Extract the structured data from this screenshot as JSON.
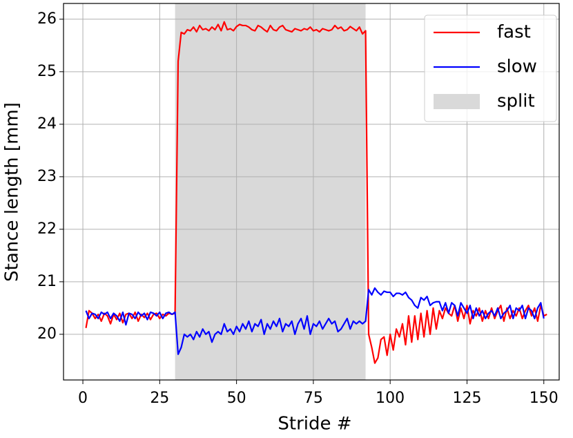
{
  "chart_data": {
    "type": "line",
    "xlabel": "Stride #",
    "ylabel": "Stance length [mm]",
    "x": [
      1,
      2,
      3,
      4,
      5,
      6,
      7,
      8,
      9,
      10,
      11,
      12,
      13,
      14,
      15,
      16,
      17,
      18,
      19,
      20,
      21,
      22,
      23,
      24,
      25,
      26,
      27,
      28,
      29,
      30,
      31,
      32,
      33,
      34,
      35,
      36,
      37,
      38,
      39,
      40,
      41,
      42,
      43,
      44,
      45,
      46,
      47,
      48,
      49,
      50,
      51,
      52,
      53,
      54,
      55,
      56,
      57,
      58,
      59,
      60,
      61,
      62,
      63,
      64,
      65,
      66,
      67,
      68,
      69,
      70,
      71,
      72,
      73,
      74,
      75,
      76,
      77,
      78,
      79,
      80,
      81,
      82,
      83,
      84,
      85,
      86,
      87,
      88,
      89,
      90,
      91,
      92,
      93,
      94,
      95,
      96,
      97,
      98,
      99,
      100,
      101,
      102,
      103,
      104,
      105,
      106,
      107,
      108,
      109,
      110,
      111,
      112,
      113,
      114,
      115,
      116,
      117,
      118,
      119,
      120,
      121,
      122,
      123,
      124,
      125,
      126,
      127,
      128,
      129,
      130,
      131,
      132,
      133,
      134,
      135,
      136,
      137,
      138,
      139,
      140,
      141,
      142,
      143,
      144,
      145,
      146,
      147,
      148,
      149,
      150,
      151
    ],
    "series": [
      {
        "name": "fast",
        "color": "#ff0000",
        "values": [
          20.12,
          20.45,
          20.4,
          20.3,
          20.38,
          20.25,
          20.4,
          20.35,
          20.2,
          20.38,
          20.28,
          20.4,
          20.22,
          20.38,
          20.4,
          20.3,
          20.42,
          20.25,
          20.38,
          20.32,
          20.4,
          20.28,
          20.38,
          20.4,
          20.3,
          20.38,
          20.35,
          20.4,
          20.38,
          20.4,
          25.2,
          25.75,
          25.72,
          25.8,
          25.78,
          25.85,
          25.76,
          25.88,
          25.8,
          25.82,
          25.78,
          25.85,
          25.8,
          25.9,
          25.78,
          25.95,
          25.8,
          25.82,
          25.78,
          25.86,
          25.9,
          25.88,
          25.88,
          25.85,
          25.8,
          25.78,
          25.88,
          25.85,
          25.8,
          25.76,
          25.88,
          25.8,
          25.78,
          25.85,
          25.88,
          25.8,
          25.78,
          25.76,
          25.82,
          25.8,
          25.78,
          25.82,
          25.8,
          25.85,
          25.78,
          25.8,
          25.76,
          25.82,
          25.8,
          25.78,
          25.8,
          25.88,
          25.82,
          25.85,
          25.78,
          25.8,
          25.86,
          25.82,
          25.78,
          25.85,
          25.72,
          25.78,
          20.0,
          19.75,
          19.45,
          19.55,
          19.9,
          19.95,
          19.6,
          20.0,
          19.7,
          20.1,
          19.95,
          20.2,
          19.8,
          20.35,
          19.85,
          20.35,
          19.9,
          20.4,
          19.95,
          20.45,
          20.0,
          20.5,
          20.1,
          20.45,
          20.3,
          20.5,
          20.4,
          20.35,
          20.55,
          20.25,
          20.5,
          20.3,
          20.55,
          20.2,
          20.45,
          20.35,
          20.5,
          20.25,
          20.45,
          20.3,
          20.5,
          20.3,
          20.45,
          20.55,
          20.25,
          20.5,
          20.3,
          20.45,
          20.35,
          20.5,
          20.3,
          20.45,
          20.55,
          20.35,
          20.5,
          20.25,
          20.55,
          20.35,
          20.38
        ]
      },
      {
        "name": "slow",
        "color": "#0000ff",
        "values": [
          20.45,
          20.3,
          20.4,
          20.38,
          20.3,
          20.42,
          20.38,
          20.42,
          20.3,
          20.4,
          20.35,
          20.25,
          20.42,
          20.18,
          20.4,
          20.38,
          20.3,
          20.42,
          20.35,
          20.4,
          20.28,
          20.42,
          20.4,
          20.35,
          20.42,
          20.3,
          20.4,
          20.42,
          20.38,
          20.42,
          19.62,
          19.75,
          20.0,
          19.95,
          20.0,
          19.9,
          20.05,
          19.95,
          20.1,
          20.0,
          20.05,
          19.85,
          20.0,
          20.05,
          20.0,
          20.2,
          20.05,
          20.1,
          20.0,
          20.15,
          20.05,
          20.2,
          20.1,
          20.25,
          20.05,
          20.2,
          20.15,
          20.28,
          20.0,
          20.2,
          20.1,
          20.25,
          20.15,
          20.3,
          20.05,
          20.2,
          20.15,
          20.25,
          20.0,
          20.2,
          20.3,
          20.1,
          20.35,
          20.0,
          20.2,
          20.15,
          20.25,
          20.1,
          20.2,
          20.3,
          20.2,
          20.25,
          20.05,
          20.1,
          20.2,
          20.3,
          20.1,
          20.25,
          20.2,
          20.25,
          20.2,
          20.25,
          20.85,
          20.75,
          20.88,
          20.8,
          20.75,
          20.82,
          20.8,
          20.8,
          20.72,
          20.78,
          20.78,
          20.75,
          20.8,
          20.7,
          20.65,
          20.55,
          20.5,
          20.7,
          20.65,
          20.72,
          20.55,
          20.6,
          20.62,
          20.62,
          20.45,
          20.6,
          20.4,
          20.6,
          20.55,
          20.35,
          20.6,
          20.5,
          20.4,
          20.55,
          20.3,
          20.5,
          20.35,
          20.45,
          20.3,
          20.4,
          20.45,
          20.35,
          20.5,
          20.3,
          20.4,
          20.45,
          20.55,
          20.3,
          20.5,
          20.45,
          20.55,
          20.3,
          20.5,
          20.45,
          20.3,
          20.5,
          20.6,
          20.3,
          null
        ]
      }
    ],
    "spans": [
      {
        "name": "split",
        "color": "#d9d9d9",
        "x": [
          30,
          92
        ]
      }
    ],
    "xlim": [
      -6.3,
      155
    ],
    "ylim": [
      19.13,
      26.3
    ],
    "xticks": [
      0,
      25,
      50,
      75,
      100,
      125,
      150
    ],
    "yticks": [
      20,
      21,
      22,
      23,
      24,
      25,
      26
    ],
    "grid": true,
    "legend": "upper right"
  }
}
